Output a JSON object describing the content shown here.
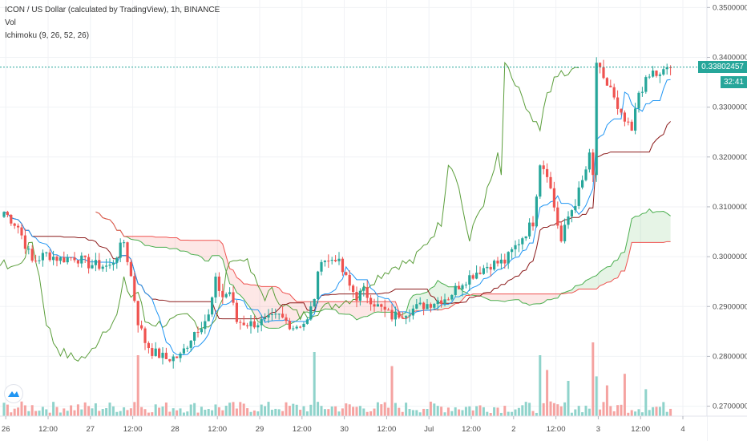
{
  "legend": {
    "title": "ICON / US Dollar (calculated by TradingView), 1h, BINANCE",
    "vol": "Vol",
    "ichimoku": "Ichimoku (9, 26, 52, 26)"
  },
  "price_tag": {
    "last": "0.33802457",
    "countdown": "32:41"
  },
  "colors": {
    "up": "#26a69a",
    "down": "#ef5350",
    "tenkan": "#2196f3",
    "kijun": "#8b1a1a",
    "lagging": "#5b9e3b",
    "span_a": "#4caf50",
    "span_b": "#ef5350",
    "vol_up": "#8fd3cb",
    "vol_down": "#f5a3a1",
    "last_line": "#26a69a"
  },
  "chart_data": {
    "type": "candlestick",
    "title": "ICON / US Dollar (calculated by TradingView), 1h, BINANCE",
    "ylim": [
      0.268,
      0.3515
    ],
    "y_ticks": [
      "0.27000000",
      "0.28000000",
      "0.29000000",
      "0.30000000",
      "0.31000000",
      "0.32000000",
      "0.33000000",
      "0.34000000",
      "0.35000000"
    ],
    "x_ticks": [
      {
        "label": "26",
        "x": 0.5
      },
      {
        "label": "12:00",
        "x": 12.5
      },
      {
        "label": "27",
        "x": 24.5
      },
      {
        "label": "12:00",
        "x": 36.5
      },
      {
        "label": "28",
        "x": 48.5
      },
      {
        "label": "12:00",
        "x": 60.5
      },
      {
        "label": "29",
        "x": 72.5
      },
      {
        "label": "12:00",
        "x": 84.5
      },
      {
        "label": "30",
        "x": 96.5
      },
      {
        "label": "12:00",
        "x": 108.5
      },
      {
        "label": "Jul",
        "x": 120.5
      },
      {
        "label": "12:00",
        "x": 132.5
      },
      {
        "label": "2",
        "x": 144.5
      },
      {
        "label": "12:00",
        "x": 156.5
      },
      {
        "label": "3",
        "x": 168.5
      },
      {
        "label": "12:00",
        "x": 180.5
      },
      {
        "label": "4",
        "x": 192.5
      }
    ],
    "last_price": 0.33802457,
    "close_anchors": [
      [
        0,
        0.309
      ],
      [
        4,
        0.306
      ],
      [
        8,
        0.299
      ],
      [
        12,
        0.3005
      ],
      [
        16,
        0.2995
      ],
      [
        20,
        0.3
      ],
      [
        24,
        0.2985
      ],
      [
        30,
        0.298
      ],
      [
        34,
        0.303
      ],
      [
        36,
        0.296
      ],
      [
        38,
        0.287
      ],
      [
        40,
        0.283
      ],
      [
        42,
        0.281
      ],
      [
        46,
        0.2795
      ],
      [
        50,
        0.28
      ],
      [
        54,
        0.285
      ],
      [
        58,
        0.288
      ],
      [
        60,
        0.295
      ],
      [
        62,
        0.292
      ],
      [
        64,
        0.293
      ],
      [
        66,
        0.287
      ],
      [
        70,
        0.2865
      ],
      [
        74,
        0.287
      ],
      [
        78,
        0.288
      ],
      [
        82,
        0.286
      ],
      [
        86,
        0.287
      ],
      [
        88,
        0.292
      ],
      [
        90,
        0.3
      ],
      [
        92,
        0.299
      ],
      [
        94,
        0.3
      ],
      [
        96,
        0.297
      ],
      [
        98,
        0.294
      ],
      [
        100,
        0.292
      ],
      [
        102,
        0.293
      ],
      [
        106,
        0.29
      ],
      [
        110,
        0.288
      ],
      [
        114,
        0.289
      ],
      [
        118,
        0.29
      ],
      [
        122,
        0.291
      ],
      [
        126,
        0.292
      ],
      [
        130,
        0.295
      ],
      [
        134,
        0.297
      ],
      [
        138,
        0.2985
      ],
      [
        142,
        0.299
      ],
      [
        146,
        0.303
      ],
      [
        150,
        0.307
      ],
      [
        152,
        0.319
      ],
      [
        154,
        0.317
      ],
      [
        156,
        0.31
      ],
      [
        158,
        0.303
      ],
      [
        160,
        0.308
      ],
      [
        162,
        0.311
      ],
      [
        164,
        0.315
      ],
      [
        166,
        0.32
      ],
      [
        167,
        0.316
      ],
      [
        168,
        0.339
      ],
      [
        170,
        0.335
      ],
      [
        172,
        0.334
      ],
      [
        174,
        0.329
      ],
      [
        176,
        0.327
      ],
      [
        178,
        0.325
      ],
      [
        180,
        0.333
      ],
      [
        182,
        0.335
      ],
      [
        184,
        0.337
      ],
      [
        186,
        0.336
      ],
      [
        188,
        0.338
      ]
    ],
    "volume_peak_candles": [
      {
        "x": 88,
        "v": 1.0
      },
      {
        "x": 110,
        "v": 0.78
      },
      {
        "x": 152,
        "v": 0.95
      },
      {
        "x": 167,
        "v": 1.15
      },
      {
        "x": 168,
        "v": 0.62
      },
      {
        "x": 176,
        "v": 0.66
      },
      {
        "x": 38,
        "v": 0.95
      },
      {
        "x": 37,
        "v": 0.22
      },
      {
        "x": 154,
        "v": 0.72
      },
      {
        "x": 160,
        "v": 0.55
      },
      {
        "x": 171,
        "v": 0.48
      },
      {
        "x": 182,
        "v": 0.42
      }
    ],
    "series": [
      {
        "name": "Tenkan",
        "values_from": "close_anchors"
      },
      {
        "name": "Kijun",
        "values_from": "close_anchors"
      },
      {
        "name": "Lagging Span",
        "values_from": "close_anchors"
      },
      {
        "name": "Senkou Span A",
        "values_from": "close_anchors"
      },
      {
        "name": "Senkou Span B",
        "values_from": "close_anchors"
      }
    ]
  }
}
